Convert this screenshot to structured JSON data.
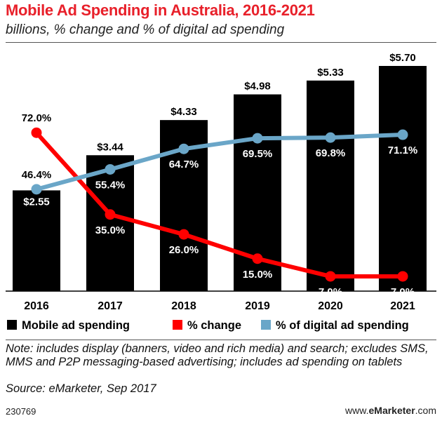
{
  "header": {
    "title": "Mobile Ad Spending in Australia, 2016-2021",
    "subtitle": "billions, % change and % of digital ad spending"
  },
  "chart_data": {
    "type": "bar",
    "categories": [
      "2016",
      "2017",
      "2018",
      "2019",
      "2020",
      "2021"
    ],
    "series": [
      {
        "name": "Mobile ad spending",
        "type": "bar",
        "color": "#000000",
        "values": [
          2.55,
          3.44,
          4.33,
          4.98,
          5.33,
          5.7
        ],
        "labels": [
          "$2.55",
          "$3.44",
          "$4.33",
          "$4.98",
          "$5.33",
          "$5.70"
        ]
      },
      {
        "name": "% change",
        "type": "line",
        "color": "#ff0000",
        "values": [
          72.0,
          35.0,
          26.0,
          15.0,
          7.0,
          7.0
        ],
        "labels": [
          "72.0%",
          "35.0%",
          "26.0%",
          "15.0%",
          "7.0%",
          "7.0%"
        ]
      },
      {
        "name": "% of digital ad spending",
        "type": "line",
        "color": "#6aa6c8",
        "values": [
          46.4,
          55.4,
          64.7,
          69.5,
          69.8,
          71.1
        ],
        "labels": [
          "46.4%",
          "55.4%",
          "64.7%",
          "69.5%",
          "69.8%",
          "71.1%"
        ]
      }
    ],
    "legend_position": "bottom",
    "grid": false
  },
  "notes": {
    "note": "Note: includes display (banners, video and rich media) and search; excludes SMS, MMS and P2P messaging-based advertising; includes ad spending on tablets",
    "source": "Source: eMarketer, Sep 2017"
  },
  "footer": {
    "chart_id": "230769",
    "site_prefix": "www.",
    "site_brand": "eMarketer",
    "site_suffix": ".com"
  }
}
